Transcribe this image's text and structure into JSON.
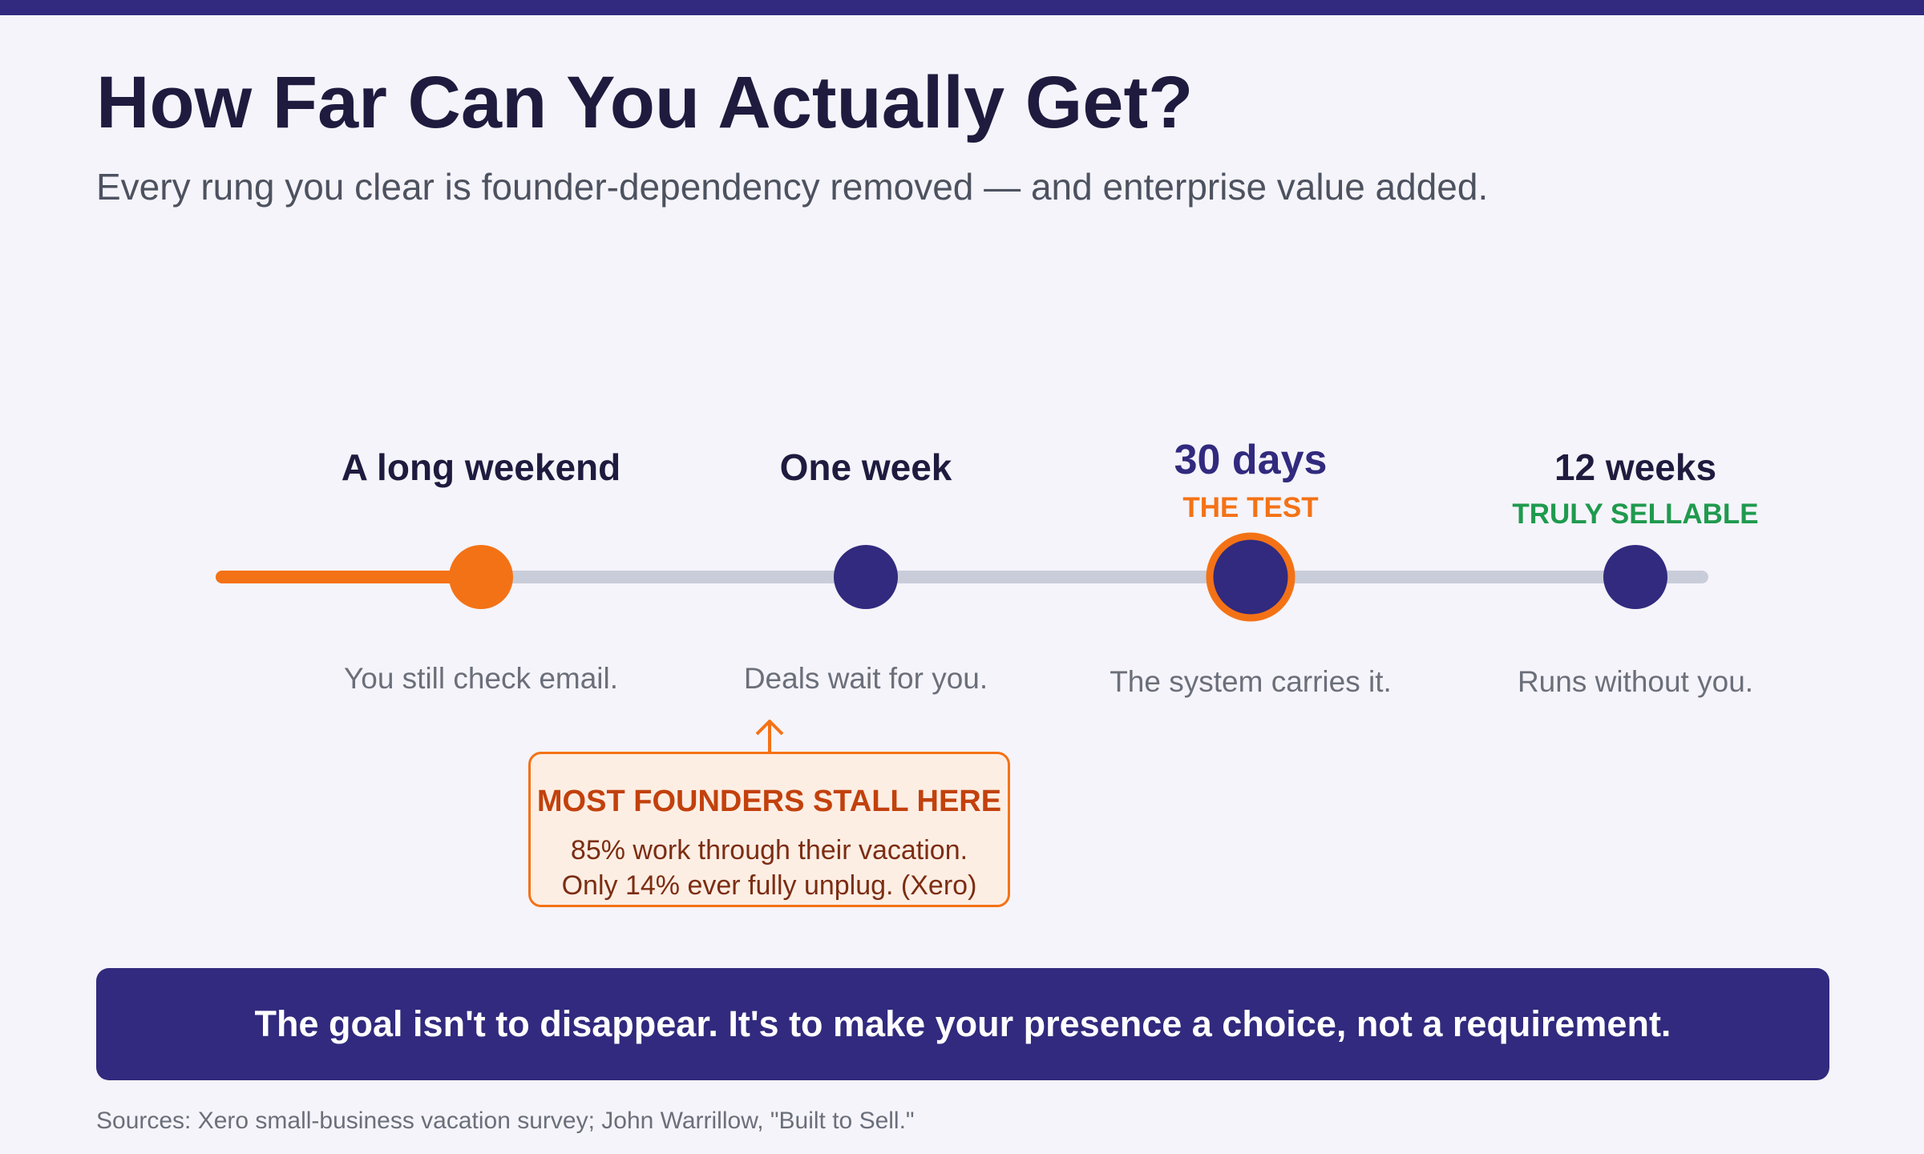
{
  "header": {
    "title": "How Far Can You Actually Get?",
    "subtitle": "Every rung you clear is founder-dependency removed — and enterprise value added."
  },
  "ladder": {
    "progress_fraction": 0.25,
    "milestones": [
      {
        "label": "A long weekend",
        "tag": "",
        "description": "You still check email.",
        "state": "reached"
      },
      {
        "label": "One week",
        "tag": "",
        "description": "Deals wait for you.",
        "state": "upcoming"
      },
      {
        "label": "30 days",
        "tag": "THE TEST",
        "description": "The system carries it.",
        "state": "test"
      },
      {
        "label": "12 weeks",
        "tag": "TRULY SELLABLE",
        "description": "Runs without you.",
        "state": "upcoming"
      }
    ]
  },
  "callout": {
    "heading": "MOST FOUNDERS STALL HERE",
    "line1": "85% work through their vacation.",
    "line2": "Only 14% ever fully unplug. (Xero)"
  },
  "banner": {
    "text": "The goal isn't to disappear. It's to make your presence a choice, not a requirement."
  },
  "footer": {
    "sources": "Sources: Xero small-business vacation survey; John Warrillow, \"Built to Sell.\""
  },
  "colors": {
    "navy": "#312a7e",
    "orange": "#f47216",
    "green": "#1f9a4e",
    "track": "#c9cdd9",
    "background": "#f5f4fa"
  }
}
